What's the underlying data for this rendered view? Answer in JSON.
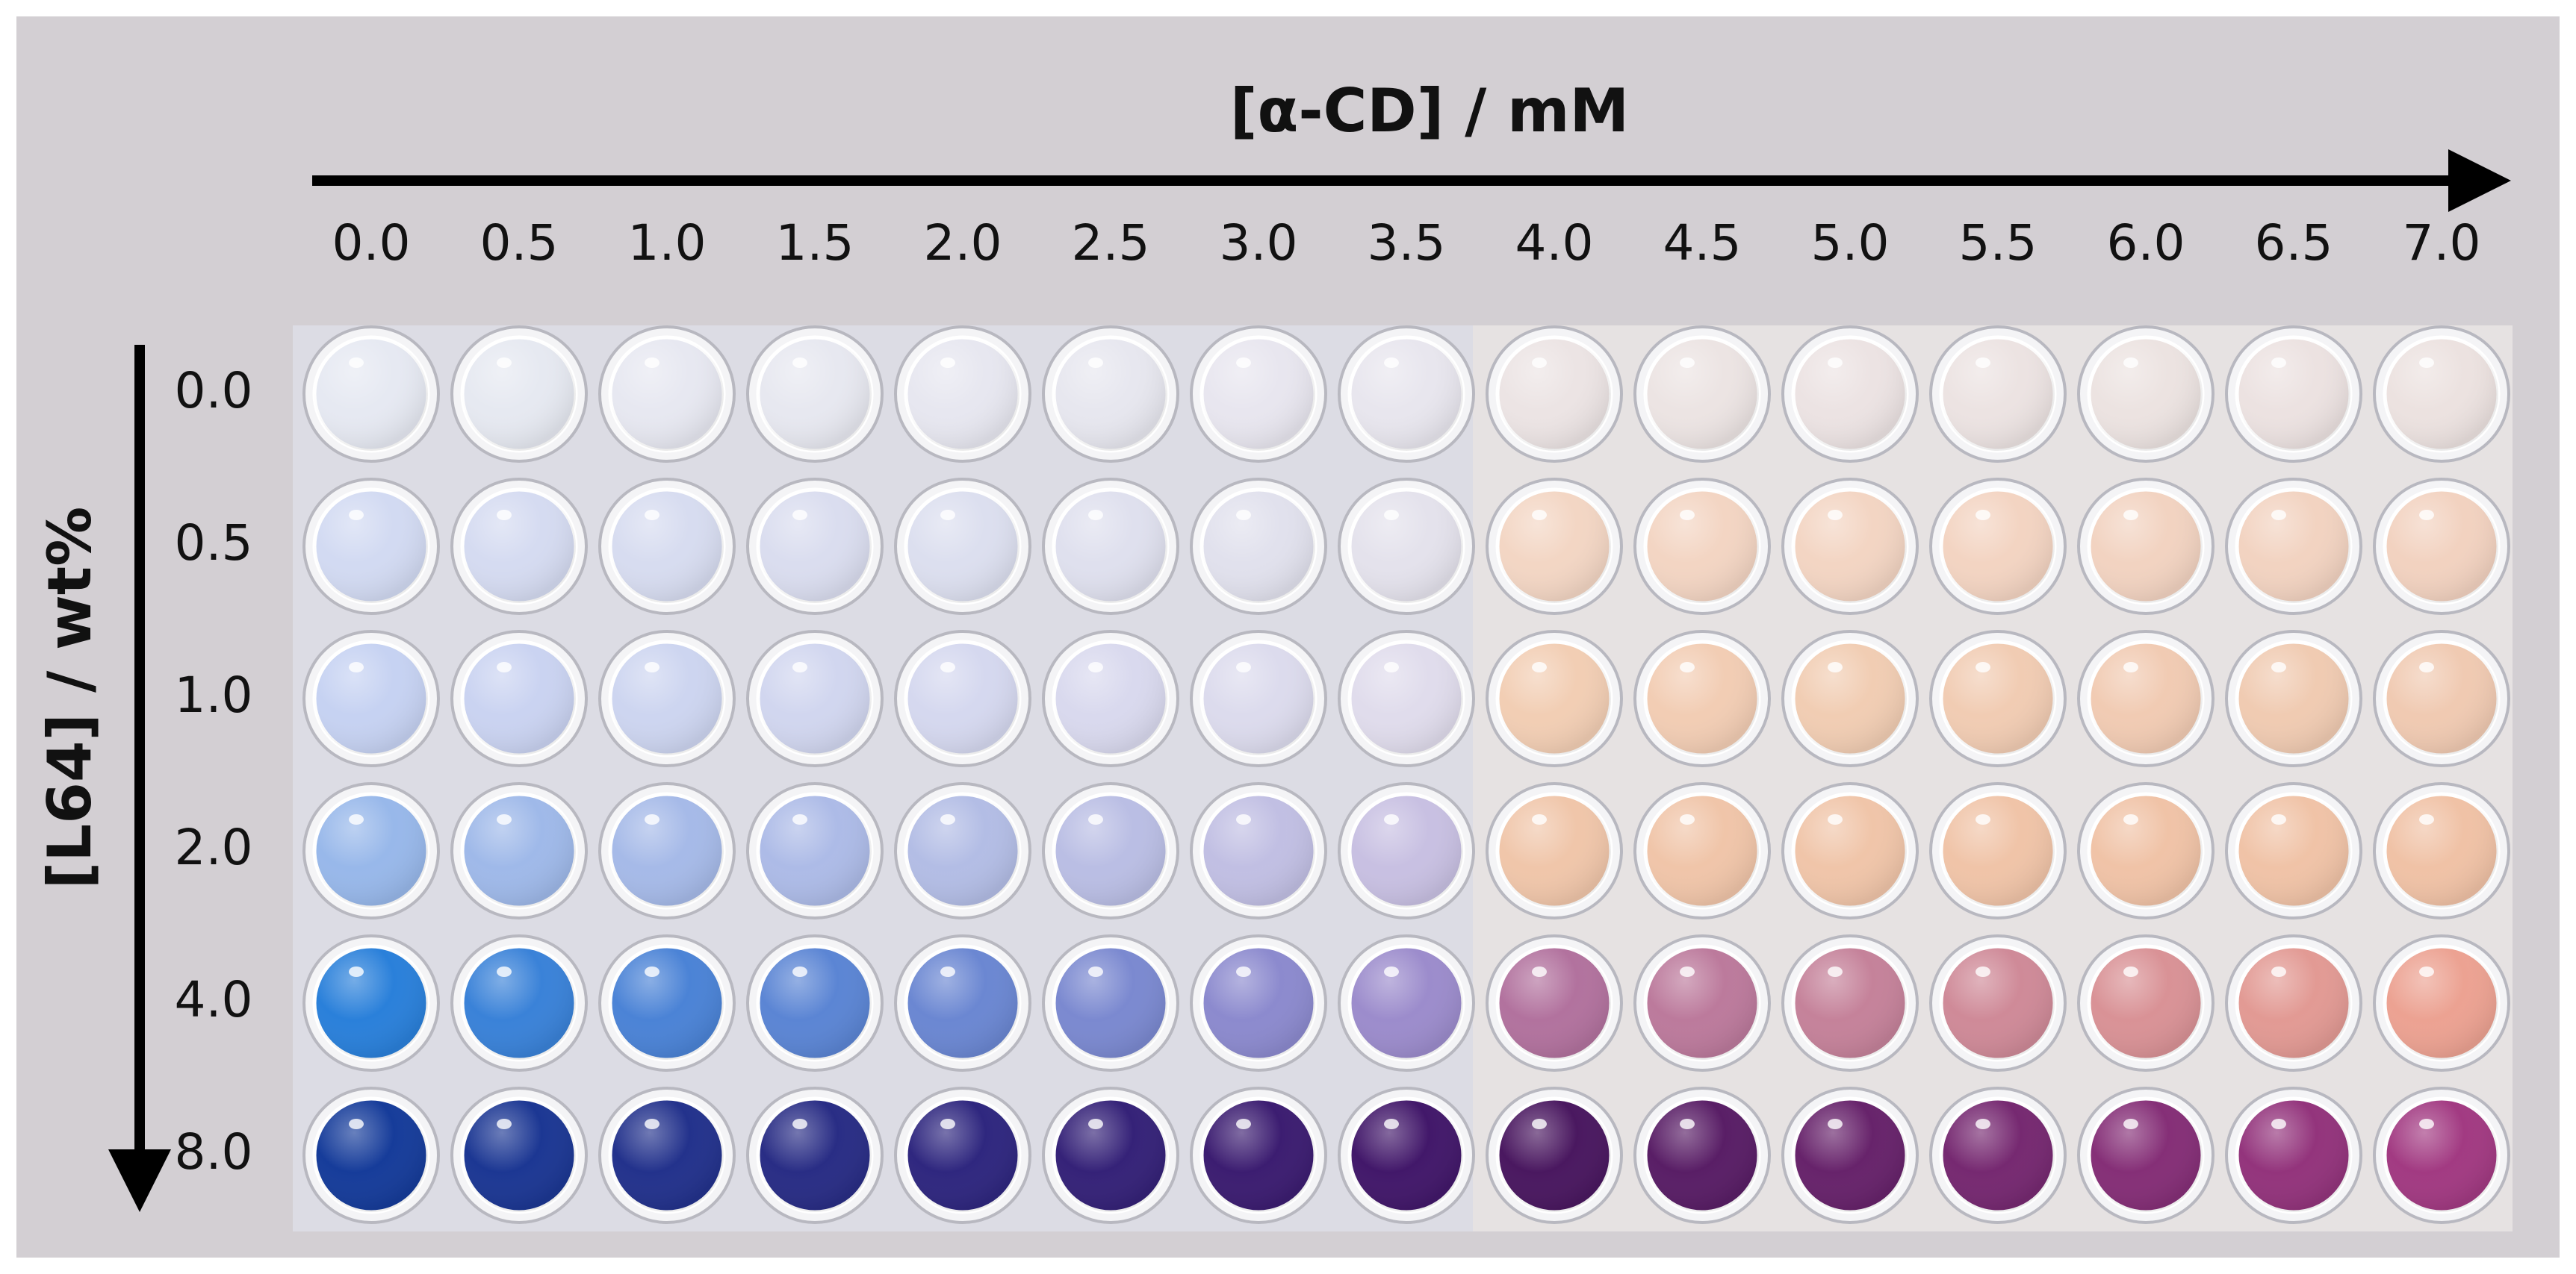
{
  "x_axis": {
    "title": "[α-CD] / mM",
    "labels": [
      "0.0",
      "0.5",
      "1.0",
      "1.5",
      "2.0",
      "2.5",
      "3.0",
      "3.5",
      "4.0",
      "4.5",
      "5.0",
      "5.5",
      "6.0",
      "6.5",
      "7.0"
    ]
  },
  "y_axis": {
    "title": "[L64] / wt%",
    "labels": [
      "0.0",
      "0.5",
      "1.0",
      "2.0",
      "4.0",
      "8.0"
    ]
  }
}
